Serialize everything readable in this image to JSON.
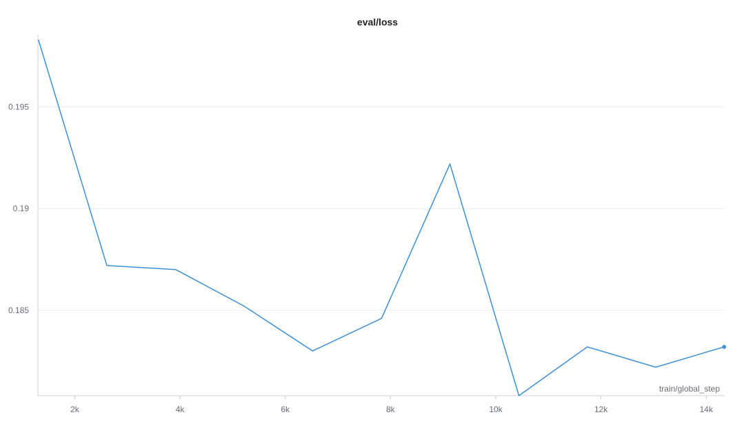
{
  "chart_data": {
    "type": "line",
    "title": "eval/loss",
    "xlabel": "train/global_step",
    "ylabel": "",
    "xlim": [
      1300,
      14350
    ],
    "ylim": [
      0.1808,
      0.1984
    ],
    "x_ticks": [
      2000,
      4000,
      6000,
      8000,
      10000,
      12000,
      14000
    ],
    "x_tick_labels": [
      "2k",
      "4k",
      "6k",
      "8k",
      "10k",
      "12k",
      "14k"
    ],
    "y_ticks": [
      0.185,
      0.19,
      0.195
    ],
    "y_tick_labels": [
      "0.185",
      "0.19",
      "0.195"
    ],
    "grid": true,
    "line_color": "#3b8fd6",
    "series": [
      {
        "name": "",
        "x": [
          1310,
          2610,
          3920,
          5220,
          6520,
          7830,
          9130,
          10440,
          11740,
          13040,
          14340
        ],
        "y": [
          0.1983,
          0.1872,
          0.187,
          0.1852,
          0.183,
          0.1846,
          0.1922,
          0.1808,
          0.1832,
          0.1822,
          0.1832
        ]
      }
    ]
  }
}
